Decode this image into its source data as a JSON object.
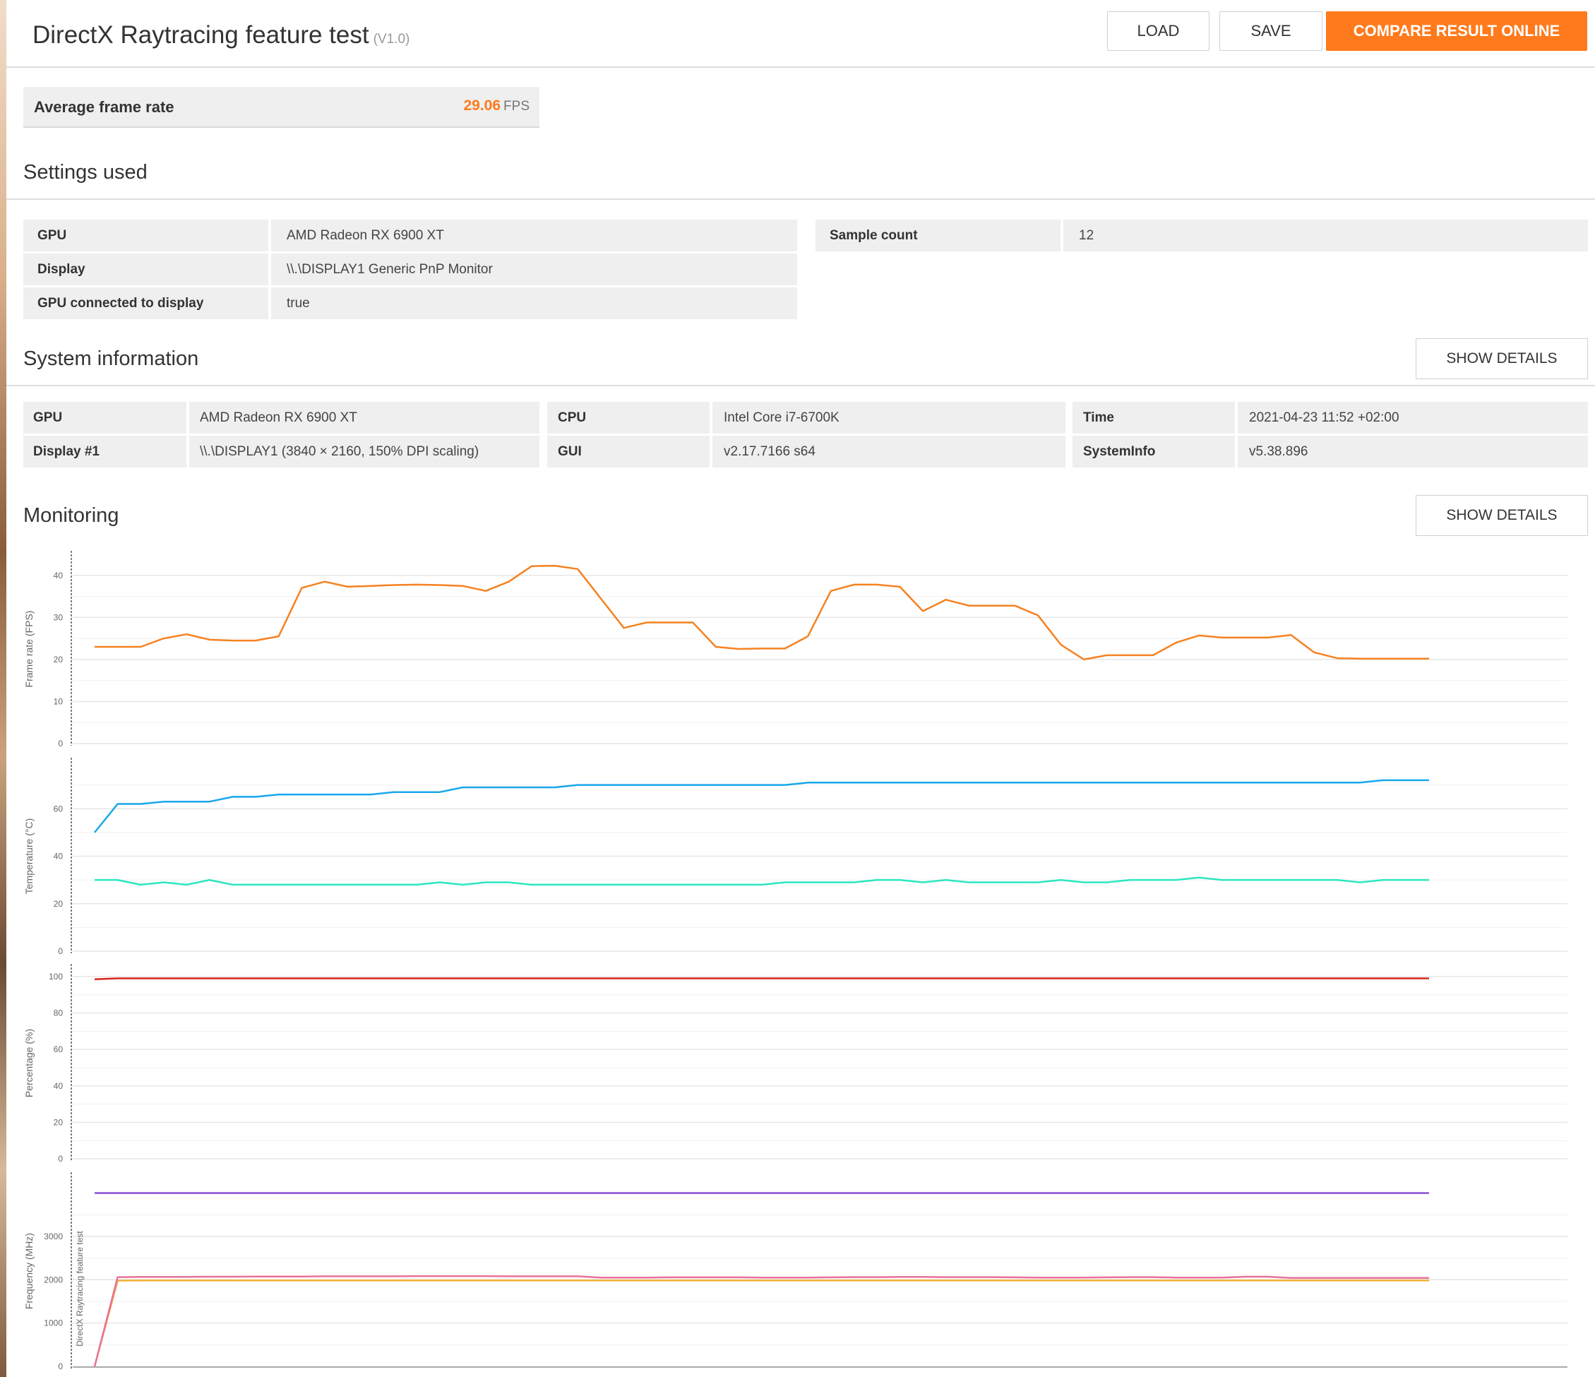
{
  "header": {
    "title": "DirectX Raytracing feature test",
    "version": "(V1.0)",
    "load_label": "LOAD",
    "save_label": "SAVE",
    "compare_label": "COMPARE RESULT ONLINE"
  },
  "summary": {
    "label": "Average frame rate",
    "value": "29.06",
    "unit": "FPS"
  },
  "settings": {
    "title": "Settings used",
    "left": [
      {
        "key": "GPU",
        "value": "AMD Radeon RX 6900 XT"
      },
      {
        "key": "Display",
        "value": "\\\\.\\DISPLAY1 Generic PnP Monitor"
      },
      {
        "key": "GPU connected to display",
        "value": "true"
      }
    ],
    "right": [
      {
        "key": "Sample count",
        "value": "12"
      }
    ]
  },
  "system": {
    "title": "System information",
    "show_details": "SHOW DETAILS",
    "col1": [
      {
        "key": "GPU",
        "value": "AMD Radeon RX 6900 XT"
      },
      {
        "key": "Display #1",
        "value": "\\\\.\\DISPLAY1 (3840 × 2160, 150% DPI scaling)"
      }
    ],
    "col2": [
      {
        "key": "CPU",
        "value": "Intel Core i7-6700K"
      },
      {
        "key": "GUI",
        "value": "v2.17.7166 s64"
      }
    ],
    "col3": [
      {
        "key": "Time",
        "value": "2021-04-23 11:52 +02:00"
      },
      {
        "key": "SystemInfo",
        "value": "v5.38.896"
      }
    ]
  },
  "monitoring": {
    "title": "Monitoring",
    "show_details": "SHOW DETAILS",
    "marker_label": "DirectX Raytracing feature test"
  },
  "chart_data": [
    {
      "type": "line",
      "ylabel": "Frame rate (FPS)",
      "ylim": [
        0,
        45
      ],
      "yticks": [
        0,
        10,
        20,
        30,
        40
      ],
      "series": [
        {
          "color": "#f58220",
          "values": [
            23,
            23,
            23,
            25,
            26,
            24.7,
            24.5,
            24.5,
            25.5,
            37,
            38.5,
            37.3,
            37.5,
            37.7,
            37.8,
            37.7,
            37.5,
            36.3,
            38.5,
            42.2,
            42.3,
            41.5,
            34.5,
            27.5,
            28.8,
            28.8,
            28.8,
            23,
            22.5,
            22.6,
            22.6,
            25.5,
            36.3,
            37.8,
            37.8,
            37.3,
            31.5,
            34.2,
            32.8,
            32.8,
            32.8,
            30.5,
            23.5,
            20,
            21,
            21,
            21,
            24,
            25.7,
            25.2,
            25.2,
            25.2,
            25.8,
            21.7,
            20.3,
            20.2,
            20.2,
            20.2,
            20.2
          ]
        }
      ]
    },
    {
      "type": "line",
      "ylabel": "Temperature (°C)",
      "ylim": [
        0,
        80
      ],
      "yticks": [
        0,
        20,
        40,
        60
      ],
      "series": [
        {
          "color": "#1aa7ec",
          "values": [
            50,
            62,
            62,
            63,
            63,
            63,
            65,
            65,
            66,
            66,
            66,
            66,
            66,
            67,
            67,
            67,
            69,
            69,
            69,
            69,
            69,
            70,
            70,
            70,
            70,
            70,
            70,
            70,
            70,
            70,
            70,
            71,
            71,
            71,
            71,
            71,
            71,
            71,
            71,
            71,
            71,
            71,
            71,
            71,
            71,
            71,
            71,
            71,
            71,
            71,
            71,
            71,
            71,
            71,
            71,
            71,
            72,
            72,
            72
          ]
        },
        {
          "color": "#2ee6c0",
          "values": [
            30,
            30,
            28,
            29,
            28,
            30,
            28,
            28,
            28,
            28,
            28,
            28,
            28,
            28,
            28,
            29,
            28,
            29,
            29,
            28,
            28,
            28,
            28,
            28,
            28,
            28,
            28,
            28,
            28,
            28,
            29,
            29,
            29,
            29,
            30,
            30,
            29,
            30,
            29,
            29,
            29,
            29,
            30,
            29,
            29,
            30,
            30,
            30,
            31,
            30,
            30,
            30,
            30,
            30,
            30,
            29,
            30,
            30,
            30
          ]
        }
      ]
    },
    {
      "type": "line",
      "ylabel": "Percentage (%)",
      "ylim": [
        0,
        105
      ],
      "yticks": [
        0,
        20,
        40,
        60,
        80,
        100
      ],
      "series": [
        {
          "color": "#d9261c",
          "values": [
            98.5,
            99,
            99,
            99,
            99,
            99,
            99,
            99,
            99,
            99,
            99,
            99,
            99,
            99,
            99,
            99,
            99,
            99,
            99,
            99,
            99,
            99,
            99,
            99,
            99,
            99,
            99,
            99,
            99,
            99,
            99,
            99,
            99,
            99,
            99,
            99,
            99,
            99,
            99,
            99,
            99,
            99,
            99,
            99,
            99,
            99,
            99,
            99,
            99,
            99,
            99,
            99,
            99,
            99,
            99,
            99,
            99,
            99,
            99
          ]
        }
      ]
    },
    {
      "type": "line",
      "ylabel": "Frequency (MHz)",
      "ylim": [
        0,
        4400
      ],
      "yticks": [
        0,
        1000,
        2000,
        3000
      ],
      "series": [
        {
          "color": "#8a4fd6",
          "values": [
            4000,
            4000,
            4000,
            4000,
            4000,
            4000,
            4000,
            4000,
            4000,
            4000,
            4000,
            4000,
            4000,
            4000,
            4000,
            4000,
            4000,
            4000,
            4000,
            4000,
            4000,
            4000,
            4000,
            4000,
            4000,
            4000,
            4000,
            4000,
            4000,
            4000,
            4000,
            4000,
            4000,
            4000,
            4000,
            4000,
            4000,
            4000,
            4000,
            4000,
            4000,
            4000,
            4000,
            4000,
            4000,
            4000,
            4000,
            4000,
            4000,
            4000,
            4000,
            4000,
            4000,
            4000,
            4000,
            4000,
            4000,
            4000,
            4000
          ]
        },
        {
          "color": "#f2b134",
          "values": [
            0,
            1980,
            1985,
            1985,
            1985,
            1985,
            1985,
            1985,
            1985,
            1985,
            1985,
            1985,
            1985,
            1985,
            1985,
            1985,
            1985,
            1985,
            1985,
            1985,
            1985,
            1985,
            1985,
            1985,
            1985,
            1985,
            1985,
            1985,
            1985,
            1985,
            1985,
            1985,
            1985,
            1985,
            1985,
            1985,
            1985,
            1985,
            1985,
            1985,
            1985,
            1985,
            1985,
            1985,
            1985,
            1985,
            1985,
            1985,
            1985,
            1985,
            1985,
            1985,
            1985,
            1985,
            1985,
            1985,
            1985,
            1985,
            1985
          ]
        },
        {
          "color": "#e8729a",
          "values": [
            0,
            2060,
            2065,
            2065,
            2065,
            2070,
            2070,
            2075,
            2075,
            2075,
            2080,
            2080,
            2080,
            2080,
            2085,
            2085,
            2085,
            2085,
            2080,
            2080,
            2080,
            2080,
            2050,
            2050,
            2050,
            2055,
            2055,
            2055,
            2055,
            2050,
            2050,
            2050,
            2055,
            2060,
            2060,
            2065,
            2065,
            2060,
            2060,
            2060,
            2055,
            2050,
            2050,
            2050,
            2055,
            2060,
            2060,
            2050,
            2050,
            2050,
            2070,
            2070,
            2040,
            2040,
            2040,
            2040,
            2040,
            2040,
            2040
          ]
        }
      ]
    }
  ]
}
